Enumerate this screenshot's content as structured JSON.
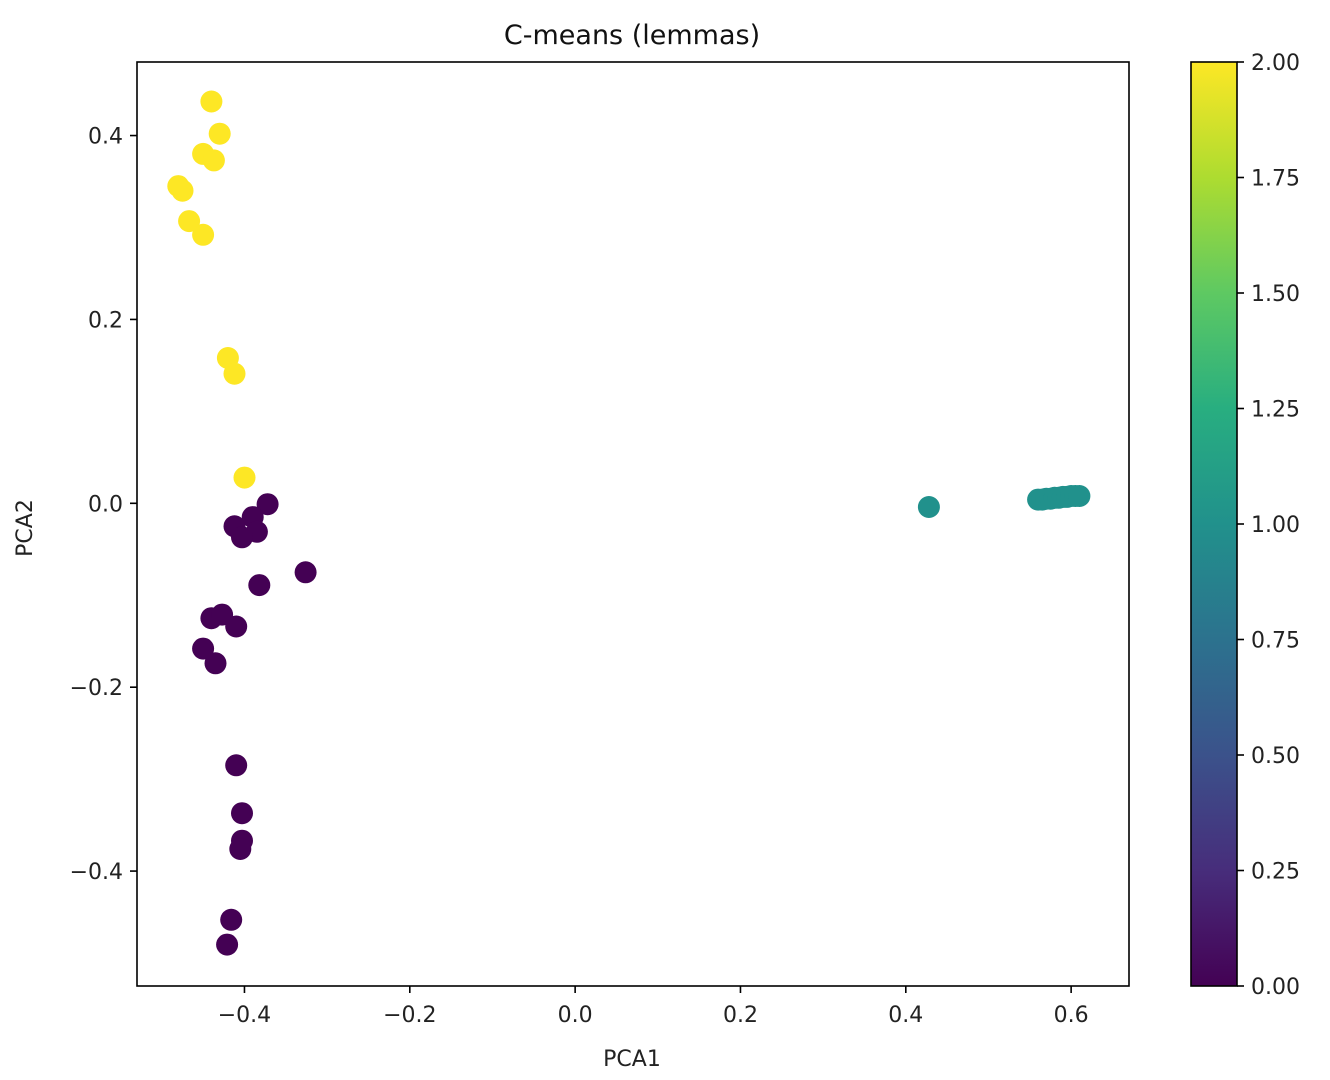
{
  "chart_data": {
    "type": "scatter",
    "title": "C-means (lemmas)",
    "xlabel": "PCA1",
    "ylabel": "PCA2",
    "xlim": [
      -0.53,
      0.67
    ],
    "ylim": [
      -0.525,
      0.48
    ],
    "xticks": [
      -0.4,
      -0.2,
      0.0,
      0.2,
      0.4,
      0.6
    ],
    "xtick_labels": [
      "−0.4",
      "−0.2",
      "0.0",
      "0.2",
      "0.4",
      "0.6"
    ],
    "yticks": [
      -0.4,
      -0.2,
      0.0,
      0.2,
      0.4
    ],
    "ytick_labels": [
      "−0.4",
      "−0.2",
      "0.0",
      "0.2",
      "0.4"
    ],
    "grid": false,
    "colormap": "viridis",
    "colorbar": {
      "range": [
        0.0,
        2.0
      ],
      "ticks": [
        0.0,
        0.25,
        0.5,
        0.75,
        1.0,
        1.25,
        1.5,
        1.75,
        2.0
      ],
      "tick_labels": [
        "0.00",
        "0.25",
        "0.50",
        "0.75",
        "1.00",
        "1.25",
        "1.50",
        "1.75",
        "2.00"
      ]
    },
    "series": [
      {
        "cluster": 2,
        "color": "#fde725",
        "points": [
          [
            -0.44,
            0.437
          ],
          [
            -0.43,
            0.402
          ],
          [
            -0.45,
            0.38
          ],
          [
            -0.437,
            0.373
          ],
          [
            -0.48,
            0.345
          ],
          [
            -0.475,
            0.34
          ],
          [
            -0.467,
            0.307
          ],
          [
            -0.45,
            0.292
          ],
          [
            -0.42,
            0.158
          ],
          [
            -0.412,
            0.141
          ],
          [
            -0.4,
            0.028
          ]
        ]
      },
      {
        "cluster": 1,
        "color": "#21918c",
        "points": [
          [
            0.428,
            -0.004
          ],
          [
            0.56,
            0.004
          ],
          [
            0.565,
            0.004
          ],
          [
            0.57,
            0.005
          ],
          [
            0.575,
            0.005
          ],
          [
            0.58,
            0.006
          ],
          [
            0.585,
            0.006
          ],
          [
            0.59,
            0.007
          ],
          [
            0.595,
            0.007
          ],
          [
            0.6,
            0.008
          ],
          [
            0.605,
            0.008
          ],
          [
            0.61,
            0.008
          ]
        ]
      },
      {
        "cluster": 0,
        "color": "#440154",
        "points": [
          [
            -0.372,
            -0.001
          ],
          [
            -0.39,
            -0.015
          ],
          [
            -0.412,
            -0.025
          ],
          [
            -0.385,
            -0.031
          ],
          [
            -0.403,
            -0.037
          ],
          [
            -0.326,
            -0.075
          ],
          [
            -0.382,
            -0.089
          ],
          [
            -0.44,
            -0.125
          ],
          [
            -0.427,
            -0.121
          ],
          [
            -0.41,
            -0.134
          ],
          [
            -0.45,
            -0.158
          ],
          [
            -0.435,
            -0.174
          ],
          [
            -0.41,
            -0.285
          ],
          [
            -0.403,
            -0.337
          ],
          [
            -0.403,
            -0.367
          ],
          [
            -0.405,
            -0.376
          ],
          [
            -0.416,
            -0.453
          ],
          [
            -0.421,
            -0.48
          ]
        ]
      }
    ]
  }
}
